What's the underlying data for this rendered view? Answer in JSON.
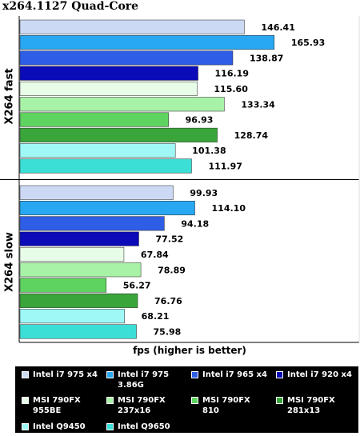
{
  "chart_data": {
    "type": "bar",
    "orientation": "horizontal",
    "title": "x264.1127 Quad-Core",
    "xlabel": "fps (higher is better)",
    "groups": [
      "X264 fast",
      "X264 slow"
    ],
    "series": [
      {
        "name": "Intel i7 975 x4",
        "color": "#ccd9f5",
        "values": [
          146.41,
          99.93
        ]
      },
      {
        "name": "Intel i7 975 3.86G",
        "color": "#29a8f2",
        "values": [
          165.93,
          114.1
        ]
      },
      {
        "name": "Intel i7 965 x4",
        "color": "#2e5ee6",
        "values": [
          138.87,
          94.18
        ]
      },
      {
        "name": "Intel i7 920 x4",
        "color": "#0b0bb8",
        "values": [
          116.19,
          77.52
        ]
      },
      {
        "name": "MSI 790FX 955BE",
        "color": "#e8fde8",
        "values": [
          115.6,
          67.84
        ]
      },
      {
        "name": "MSI 790FX 237x16",
        "color": "#a8f2a8",
        "values": [
          133.34,
          78.89
        ]
      },
      {
        "name": "MSI 790FX 810",
        "color": "#5fd35f",
        "values": [
          96.93,
          56.27
        ]
      },
      {
        "name": "MSI 790FX 281x13",
        "color": "#3aa53a",
        "values": [
          128.74,
          76.76
        ]
      },
      {
        "name": "Intel Q9450",
        "color": "#9ff8f5",
        "values": [
          101.38,
          68.21
        ]
      },
      {
        "name": "Intel Q9650",
        "color": "#3bdfd6",
        "values": [
          111.97,
          75.98
        ]
      }
    ],
    "value_labels": [
      [
        "146.41",
        "165.93",
        "138.87",
        "116.19",
        "115.60",
        "133.34",
        "96.93",
        "128.74",
        "101.38",
        "111.97"
      ],
      [
        "99.93",
        "114.10",
        "94.18",
        "77.52",
        "67.84",
        "78.89",
        "56.27",
        "76.76",
        "68.21",
        "75.98"
      ]
    ],
    "xlim": [
      0,
      189
    ],
    "grid": false,
    "legend_position": "bottom"
  },
  "legend": {
    "items": [
      {
        "label": "Intel i7 975 x4",
        "color": "#ccd9f5"
      },
      {
        "label": "Intel i7 975 3.86G",
        "color": "#29a8f2"
      },
      {
        "label": "Intel i7 965 x4",
        "color": "#2e5ee6"
      },
      {
        "label": "Intel i7 920 x4",
        "color": "#0b0bb8"
      },
      {
        "label": "MSI 790FX 955BE",
        "color": "#e8fde8"
      },
      {
        "label": "MSI 790FX 237x16",
        "color": "#a8f2a8"
      },
      {
        "label": "MSI 790FX 810",
        "color": "#5fd35f"
      },
      {
        "label": "MSI 790FX 281x13",
        "color": "#3aa53a"
      },
      {
        "label": "Intel Q9450",
        "color": "#9ff8f5"
      },
      {
        "label": "Intel Q9650",
        "color": "#3bdfd6"
      }
    ]
  }
}
